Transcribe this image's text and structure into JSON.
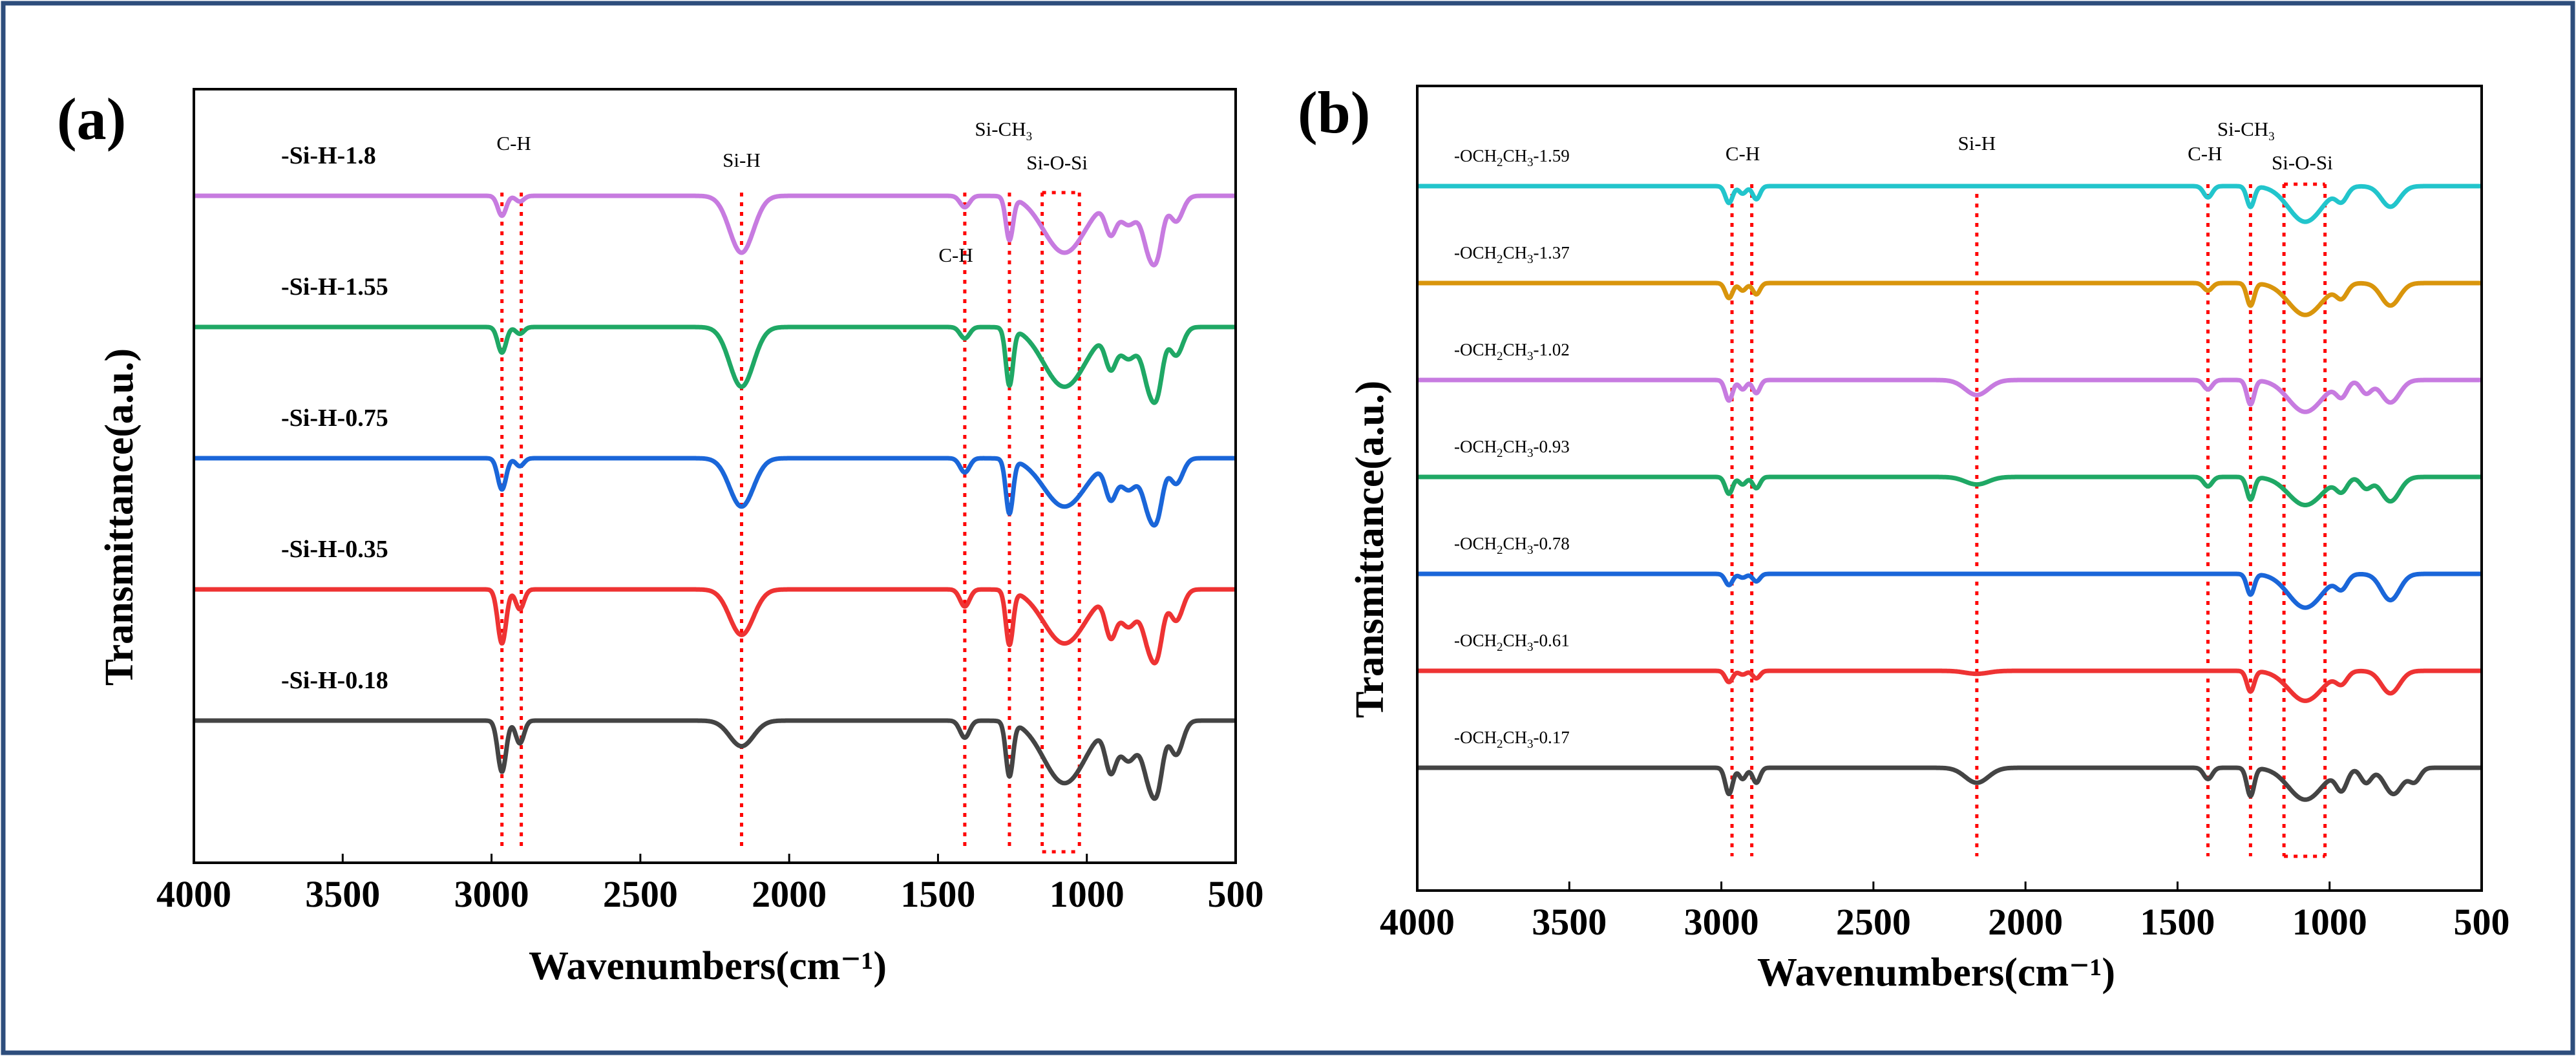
{
  "colors": {
    "border": "#2d4d7c",
    "ref_line": "#ff0000",
    "axis": "#000000"
  },
  "chart_data": [
    {
      "panel": "(a)",
      "type": "line",
      "title": "",
      "xlabel": "Wavenumbers(cm⁻¹)",
      "ylabel": "Transmittance(a.u.)",
      "xlim": [
        4000,
        500
      ],
      "x_ticks": [
        4000,
        3500,
        3000,
        2500,
        2000,
        1500,
        1000,
        500
      ],
      "grid": false,
      "reference_lines_cm-1": [
        2965,
        2900,
        2160,
        1410,
        1260,
        1150,
        1025
      ],
      "band_labels": [
        {
          "text": "C-H",
          "at": 2925
        },
        {
          "text": "Si-H",
          "at": 2160
        },
        {
          "text": "C-H",
          "at": 1440
        },
        {
          "text": "Si-CH",
          "sub": "3",
          "at": 1280
        },
        {
          "text": "Si-O-Si",
          "at": 1100
        }
      ],
      "series": [
        {
          "name": "-Si-H-1.8",
          "color": "#c77be0",
          "offset": 4,
          "peaks": [
            [
              2965,
              0.35,
              14
            ],
            [
              2905,
              0.1,
              14
            ],
            [
              2160,
              1.0,
              40
            ],
            [
              1410,
              0.2,
              16
            ],
            [
              1260,
              0.75,
              12
            ],
            [
              1075,
              1.0,
              70
            ],
            [
              920,
              0.55,
              18
            ],
            [
              860,
              0.5,
              30
            ],
            [
              790,
              0.9,
              22
            ],
            [
              760,
              0.7,
              18
            ],
            [
              700,
              0.45,
              22
            ]
          ]
        },
        {
          "name": "-Si-H-1.55",
          "color": "#1fa865",
          "offset": 3,
          "peaks": [
            [
              2965,
              0.45,
              14
            ],
            [
              2905,
              0.12,
              14
            ],
            [
              2160,
              1.05,
              40
            ],
            [
              1410,
              0.2,
              16
            ],
            [
              1260,
              1.0,
              12
            ],
            [
              1075,
              1.05,
              70
            ],
            [
              920,
              0.6,
              18
            ],
            [
              860,
              0.55,
              30
            ],
            [
              790,
              0.95,
              22
            ],
            [
              760,
              0.8,
              18
            ],
            [
              700,
              0.5,
              22
            ]
          ]
        },
        {
          "name": "-Si-H-0.75",
          "color": "#1a66d9",
          "offset": 2,
          "peaks": [
            [
              2965,
              0.55,
              14
            ],
            [
              2905,
              0.14,
              14
            ],
            [
              2160,
              0.85,
              40
            ],
            [
              1410,
              0.25,
              16
            ],
            [
              1260,
              0.95,
              12
            ],
            [
              1075,
              0.85,
              70
            ],
            [
              920,
              0.6,
              18
            ],
            [
              860,
              0.55,
              30
            ],
            [
              790,
              0.85,
              22
            ],
            [
              760,
              0.7,
              18
            ],
            [
              700,
              0.45,
              22
            ]
          ]
        },
        {
          "name": "-Si-H-0.35",
          "color": "#ee3333",
          "offset": 1,
          "peaks": [
            [
              2965,
              0.95,
              14
            ],
            [
              2905,
              0.35,
              14
            ],
            [
              2160,
              0.8,
              40
            ],
            [
              1410,
              0.3,
              16
            ],
            [
              1260,
              0.95,
              12
            ],
            [
              1075,
              0.95,
              70
            ],
            [
              920,
              0.7,
              18
            ],
            [
              860,
              0.65,
              30
            ],
            [
              790,
              0.9,
              22
            ],
            [
              760,
              0.8,
              18
            ],
            [
              700,
              0.55,
              22
            ]
          ]
        },
        {
          "name": "-Si-H-0.18",
          "color": "#444444",
          "offset": 0,
          "peaks": [
            [
              2965,
              0.9,
              14
            ],
            [
              2905,
              0.4,
              14
            ],
            [
              2160,
              0.45,
              40
            ],
            [
              1410,
              0.3,
              16
            ],
            [
              1260,
              0.95,
              12
            ],
            [
              1075,
              1.1,
              70
            ],
            [
              920,
              0.75,
              18
            ],
            [
              860,
              0.7,
              30
            ],
            [
              790,
              0.95,
              22
            ],
            [
              760,
              0.85,
              18
            ],
            [
              700,
              0.6,
              22
            ]
          ]
        }
      ]
    },
    {
      "panel": "(b)",
      "type": "line",
      "title": "",
      "xlabel": "Wavenumbers(cm⁻¹)",
      "ylabel": "Transmittance(a.u.)",
      "xlim": [
        4000,
        500
      ],
      "x_ticks": [
        4000,
        3500,
        3000,
        2500,
        2000,
        1500,
        1000,
        500
      ],
      "grid": false,
      "reference_lines_cm-1": [
        2965,
        2900,
        2160,
        1400,
        1260,
        1150,
        1015
      ],
      "band_labels": [
        {
          "text": "C-H",
          "at": 2930
        },
        {
          "text": "Si-H",
          "at": 2160
        },
        {
          "text": "C-H",
          "at": 1410
        },
        {
          "text": "Si-CH",
          "sub": "3",
          "at": 1275
        },
        {
          "text": "Si-O-Si",
          "at": 1090
        }
      ],
      "series": [
        {
          "name": "-OCH2CH3-1.59",
          "label_parts": [
            "-OCH",
            "2",
            "CH",
            "3",
            "-1.59"
          ],
          "color": "#22c5cc",
          "offset": 6,
          "peaks": [
            [
              2975,
              0.45,
              12
            ],
            [
              2930,
              0.2,
              12
            ],
            [
              2885,
              0.35,
              12
            ],
            [
              1400,
              0.3,
              14
            ],
            [
              1260,
              0.55,
              12
            ],
            [
              1080,
              0.95,
              55
            ],
            [
              960,
              0.35,
              18
            ],
            [
              800,
              0.55,
              30
            ]
          ]
        },
        {
          "name": "-OCH2CH3-1.37",
          "label_parts": [
            "-OCH",
            "2",
            "CH",
            "3",
            "-1.37"
          ],
          "color": "#d9950c",
          "offset": 5,
          "peaks": [
            [
              2975,
              0.4,
              12
            ],
            [
              2930,
              0.2,
              12
            ],
            [
              2885,
              0.3,
              12
            ],
            [
              1400,
              0.2,
              14
            ],
            [
              1260,
              0.6,
              12
            ],
            [
              1080,
              0.85,
              55
            ],
            [
              960,
              0.35,
              18
            ],
            [
              800,
              0.6,
              30
            ]
          ]
        },
        {
          "name": "-OCH2CH3-1.02",
          "label_parts": [
            "-OCH",
            "2",
            "CH",
            "3",
            "-1.02"
          ],
          "color": "#c77be0",
          "offset": 4,
          "peaks": [
            [
              2975,
              0.55,
              12
            ],
            [
              2930,
              0.25,
              12
            ],
            [
              2885,
              0.35,
              12
            ],
            [
              2160,
              0.4,
              38
            ],
            [
              1400,
              0.25,
              14
            ],
            [
              1260,
              0.65,
              12
            ],
            [
              1080,
              0.85,
              55
            ],
            [
              960,
              0.4,
              18
            ],
            [
              880,
              0.35,
              18
            ],
            [
              800,
              0.6,
              30
            ]
          ]
        },
        {
          "name": "-OCH2CH3-0.93",
          "label_parts": [
            "-OCH",
            "2",
            "CH",
            "3",
            "-0.93"
          ],
          "color": "#1fa865",
          "offset": 3,
          "peaks": [
            [
              2975,
              0.45,
              12
            ],
            [
              2930,
              0.2,
              12
            ],
            [
              2885,
              0.3,
              12
            ],
            [
              2160,
              0.2,
              38
            ],
            [
              1400,
              0.25,
              14
            ],
            [
              1260,
              0.6,
              12
            ],
            [
              1080,
              0.75,
              55
            ],
            [
              960,
              0.35,
              18
            ],
            [
              880,
              0.3,
              18
            ],
            [
              800,
              0.65,
              30
            ]
          ]
        },
        {
          "name": "-OCH2CH3-0.78",
          "label_parts": [
            "-OCH",
            "2",
            "CH",
            "3",
            "-0.78"
          ],
          "color": "#1a66d9",
          "offset": 2,
          "peaks": [
            [
              2975,
              0.3,
              12
            ],
            [
              2930,
              0.1,
              12
            ],
            [
              2885,
              0.2,
              12
            ],
            [
              1260,
              0.55,
              12
            ],
            [
              1080,
              0.9,
              55
            ],
            [
              960,
              0.35,
              18
            ],
            [
              800,
              0.7,
              30
            ]
          ]
        },
        {
          "name": "-OCH2CH3-0.61",
          "label_parts": [
            "-OCH",
            "2",
            "CH",
            "3",
            "-0.61"
          ],
          "color": "#ee3333",
          "offset": 1,
          "peaks": [
            [
              2975,
              0.3,
              12
            ],
            [
              2930,
              0.1,
              12
            ],
            [
              2885,
              0.2,
              12
            ],
            [
              2160,
              0.08,
              38
            ],
            [
              1260,
              0.55,
              12
            ],
            [
              1080,
              0.8,
              55
            ],
            [
              960,
              0.3,
              18
            ],
            [
              800,
              0.6,
              30
            ]
          ]
        },
        {
          "name": "-OCH2CH3-0.17",
          "label_parts": [
            "-OCH",
            "2",
            "CH",
            "3",
            "-0.17"
          ],
          "color": "#444444",
          "offset": 0,
          "peaks": [
            [
              2975,
              0.7,
              12
            ],
            [
              2930,
              0.3,
              12
            ],
            [
              2885,
              0.4,
              12
            ],
            [
              2160,
              0.4,
              38
            ],
            [
              1400,
              0.3,
              14
            ],
            [
              1260,
              0.75,
              12
            ],
            [
              1080,
              0.85,
              55
            ],
            [
              960,
              0.55,
              18
            ],
            [
              880,
              0.4,
              18
            ],
            [
              790,
              0.7,
              30
            ],
            [
              720,
              0.35,
              18
            ]
          ]
        }
      ]
    }
  ]
}
